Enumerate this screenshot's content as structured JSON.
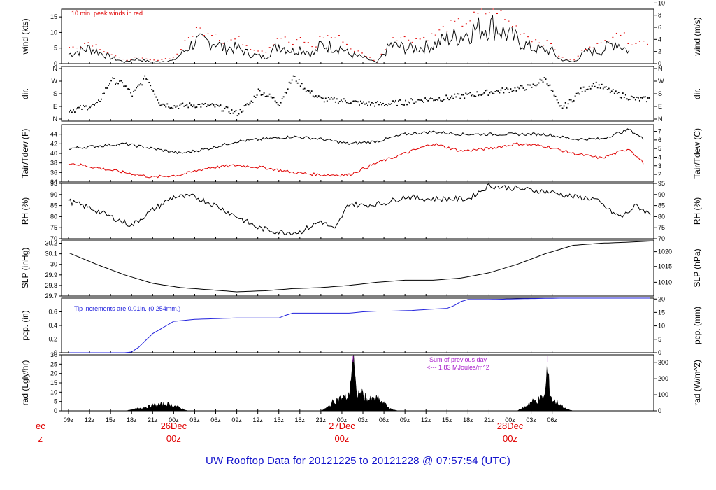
{
  "footer_title": "UW Rooftop Data for 20121225  to  20121228 @ 07:57:54  (UTC)",
  "colors": {
    "black": "#000000",
    "red": "#e00000",
    "blue": "#2222dd",
    "purple": "#aa22cc",
    "title_blue": "#1111cc"
  },
  "chart_data": [
    {
      "type": "line",
      "id": "wind",
      "ylabel": "wind (kts)",
      "ylabel_right": "wind (m/s)",
      "ylim": [
        0,
        17.5
      ],
      "yticks": [
        0,
        5,
        10,
        15
      ],
      "yticks_right": [
        {
          "v": 0,
          "label": "0"
        },
        {
          "v": 3.89,
          "label": "2"
        },
        {
          "v": 7.78,
          "label": "4"
        },
        {
          "v": 11.66,
          "label": "6"
        },
        {
          "v": 15.55,
          "label": "8"
        },
        {
          "v": 19.44,
          "label": "10"
        }
      ],
      "annotation": "10 min. peak winds in red",
      "x": [
        0,
        3,
        6,
        8,
        9.5,
        12,
        15,
        18,
        21,
        22,
        24,
        26,
        28,
        30,
        32,
        33,
        35,
        36,
        39,
        40,
        42,
        44,
        46,
        48,
        50,
        52,
        54,
        56,
        58,
        60,
        61,
        62,
        63,
        66,
        69,
        70,
        72,
        74,
        76,
        78,
        80
      ],
      "series": [
        {
          "name": "",
          "values": [
            3,
            5,
            2,
            0.5,
            1.5,
            0.5,
            1,
            7,
            7,
            5,
            5,
            3,
            2,
            6,
            4,
            5,
            3,
            6,
            5,
            3,
            2,
            0.3,
            6,
            5,
            5,
            6,
            8,
            9,
            11,
            12,
            12,
            10,
            9,
            5,
            4,
            1.5,
            0.5,
            4,
            4,
            7,
            4
          ]
        },
        {
          "name": "10 min. peak winds in red",
          "values": [
            5,
            7,
            3,
            1,
            2,
            1,
            2,
            11,
            10,
            7,
            8,
            5,
            4,
            9,
            6,
            8,
            5,
            9,
            8,
            5,
            3,
            0.5,
            9,
            8,
            8,
            9,
            12,
            13,
            15,
            17,
            18,
            14,
            13,
            8,
            6,
            2,
            1,
            6,
            6,
            11,
            7
          ]
        }
      ]
    },
    {
      "type": "scatter",
      "id": "dir",
      "ylabel": "dir.",
      "ylabel_right": "dir.",
      "ylim": [
        -15,
        375
      ],
      "yticks": [
        {
          "v": 0,
          "label": "N"
        },
        {
          "v": 90,
          "label": "E"
        },
        {
          "v": 180,
          "label": "S"
        },
        {
          "v": 270,
          "label": "W"
        },
        {
          "v": 360,
          "label": "N"
        }
      ],
      "x": [
        0,
        2,
        4,
        6,
        8,
        9,
        11,
        13,
        15,
        18,
        21,
        24,
        26,
        27,
        29,
        30,
        32,
        34,
        36,
        39,
        42,
        45,
        48,
        51,
        54,
        57,
        60,
        63,
        66,
        68,
        70,
        71,
        73,
        75,
        78,
        81
      ],
      "values": [
        60,
        80,
        100,
        280,
        240,
        170,
        300,
        110,
        90,
        100,
        90,
        40,
        120,
        200,
        150,
        110,
        300,
        200,
        140,
        130,
        110,
        105,
        120,
        140,
        150,
        170,
        190,
        210,
        230,
        290,
        80,
        100,
        200,
        250,
        180,
        140
      ]
    },
    {
      "type": "line",
      "id": "temp",
      "ylabel": "Tair/Tdew (F)",
      "ylabel_right": "Tair/Tdew (C)",
      "ylim": [
        34,
        46
      ],
      "yticks": [
        34,
        36,
        38,
        40,
        42,
        44
      ],
      "yticks_right": [
        {
          "v": 35.6,
          "label": "2"
        },
        {
          "v": 37.4,
          "label": "3"
        },
        {
          "v": 39.2,
          "label": "4"
        },
        {
          "v": 41.0,
          "label": "5"
        },
        {
          "v": 42.8,
          "label": "6"
        },
        {
          "v": 44.6,
          "label": "7"
        }
      ],
      "x": [
        0,
        4,
        8,
        12,
        16,
        20,
        24,
        28,
        32,
        36,
        40,
        44,
        48,
        52,
        56,
        60,
        64,
        68,
        72,
        76,
        80,
        82
      ],
      "series": [
        {
          "name": "Tair",
          "values": [
            41,
            41.5,
            42,
            41,
            40,
            41,
            42.5,
            43,
            43.5,
            43,
            42,
            42.5,
            44,
            44.5,
            44,
            44,
            44,
            44,
            43,
            43,
            45,
            43
          ]
        },
        {
          "name": "Tdew",
          "values": [
            38,
            37,
            36,
            35,
            35.5,
            37,
            37.5,
            37,
            36,
            35.5,
            35.5,
            38,
            40,
            42,
            40.5,
            41,
            42,
            41.5,
            40,
            39,
            41,
            38
          ]
        }
      ]
    },
    {
      "type": "line",
      "id": "rh",
      "ylabel": "RH (%)",
      "ylabel_right": "RH (%)",
      "ylim": [
        70,
        95
      ],
      "yticks": [
        70,
        75,
        80,
        85,
        90,
        95
      ],
      "x": [
        0,
        3,
        6,
        9,
        12,
        15,
        18,
        21,
        24,
        27,
        30,
        33,
        36,
        38,
        40,
        42,
        45,
        48,
        51,
        54,
        57,
        60,
        63,
        66,
        69,
        72,
        75,
        78,
        79,
        81,
        83
      ],
      "values": [
        87,
        84,
        80,
        76,
        83,
        89,
        89,
        85,
        80,
        75,
        73,
        73,
        78,
        74,
        86,
        85,
        86,
        89,
        88,
        88,
        88,
        94,
        93,
        92,
        91,
        89,
        88,
        81,
        80,
        85,
        81
      ]
    },
    {
      "type": "line",
      "id": "slp",
      "ylabel": "SLP (inHg)",
      "ylabel_right": "SLP (hPa)",
      "ylim": [
        29.7,
        30.23
      ],
      "yticks": [
        29.7,
        29.8,
        29.9,
        30.0,
        30.1,
        30.2
      ],
      "yticks_right": [
        {
          "v": 29.83,
          "label": "1010"
        },
        {
          "v": 29.98,
          "label": "1015"
        },
        {
          "v": 30.12,
          "label": "1020"
        }
      ],
      "x": [
        0,
        4,
        8,
        12,
        16,
        20,
        24,
        28,
        32,
        36,
        40,
        44,
        48,
        52,
        56,
        60,
        64,
        68,
        72,
        76,
        80,
        83
      ],
      "values": [
        30.11,
        30.0,
        29.9,
        29.82,
        29.78,
        29.76,
        29.74,
        29.75,
        29.77,
        29.78,
        29.8,
        29.83,
        29.85,
        29.85,
        29.87,
        29.92,
        30.0,
        30.1,
        30.18,
        30.2,
        30.21,
        30.22
      ]
    },
    {
      "type": "line",
      "id": "pcp",
      "ylabel": "pcp. (in)",
      "ylabel_right": "pcp. (mm)",
      "ylim": [
        0,
        0.8
      ],
      "yticks": [
        0,
        0.2,
        0.4,
        0.6
      ],
      "yticks_right": [
        {
          "v": 0,
          "label": "0"
        },
        {
          "v": 0.197,
          "label": "5"
        },
        {
          "v": 0.394,
          "label": "10"
        },
        {
          "v": 0.591,
          "label": "15"
        },
        {
          "v": 0.787,
          "label": "20"
        }
      ],
      "annotation": "Tip increments are 0.01in. (0.254mm.)",
      "x": [
        0,
        8,
        9,
        10,
        12,
        15,
        18,
        21,
        24,
        30,
        31,
        32,
        33,
        40,
        42,
        44,
        46,
        49,
        52,
        54,
        55,
        56,
        57,
        60,
        64,
        70,
        83
      ],
      "values": [
        0,
        0,
        0.01,
        0.08,
        0.28,
        0.46,
        0.49,
        0.5,
        0.51,
        0.51,
        0.55,
        0.58,
        0.58,
        0.58,
        0.6,
        0.61,
        0.61,
        0.62,
        0.64,
        0.65,
        0.69,
        0.75,
        0.78,
        0.78,
        0.79,
        0.8,
        0.8
      ]
    },
    {
      "type": "area",
      "id": "rad",
      "ylabel": "rad (Lgly/hr)",
      "ylabel_right": "rad (W/m^2)",
      "ylim": [
        0,
        30
      ],
      "yticks": [
        0,
        5,
        10,
        15,
        20,
        25,
        30
      ],
      "yticks_right": [
        {
          "v": 0,
          "label": "0"
        },
        {
          "v": 8.6,
          "label": "100"
        },
        {
          "v": 17.2,
          "label": "200"
        },
        {
          "v": 25.8,
          "label": "300"
        }
      ],
      "annotation": "Sum of previous day",
      "annotation2": "<--- 1.83 MJoules/m^2",
      "x": [
        8,
        9,
        10,
        11,
        12,
        13,
        14,
        15,
        16,
        17,
        36,
        37,
        38,
        39,
        40,
        40.3,
        40.6,
        41,
        42,
        43,
        44,
        45,
        46,
        47,
        64,
        65,
        66,
        67,
        68,
        68.3,
        68.6,
        69,
        70,
        71,
        72
      ],
      "values": [
        0,
        0.5,
        1.5,
        2,
        3,
        3.5,
        4,
        3,
        1.5,
        0,
        0,
        2,
        6,
        7,
        8,
        20,
        30,
        10,
        9,
        6,
        7,
        4,
        1,
        0,
        0,
        2,
        5,
        6,
        8,
        25,
        12,
        6,
        4,
        1,
        0
      ]
    }
  ],
  "time_axis": {
    "ticks": [
      {
        "t": 0,
        "label": "09z"
      },
      {
        "t": 3,
        "label": "12z"
      },
      {
        "t": 6,
        "label": "15z"
      },
      {
        "t": 9,
        "label": "18z"
      },
      {
        "t": 12,
        "label": "21z"
      },
      {
        "t": 15,
        "label": "00z"
      },
      {
        "t": 18,
        "label": "03z"
      },
      {
        "t": 21,
        "label": "06z"
      },
      {
        "t": 24,
        "label": "09z"
      },
      {
        "t": 27,
        "label": "12z"
      },
      {
        "t": 30,
        "label": "15z"
      },
      {
        "t": 33,
        "label": "18z"
      },
      {
        "t": 36,
        "label": "21z"
      },
      {
        "t": 39,
        "label": "00z"
      },
      {
        "t": 42,
        "label": "03z"
      },
      {
        "t": 45,
        "label": "06z"
      },
      {
        "t": 48,
        "label": "09z"
      },
      {
        "t": 51,
        "label": "12z"
      },
      {
        "t": 54,
        "label": "15z"
      },
      {
        "t": 57,
        "label": "18z"
      },
      {
        "t": 60,
        "label": "21z"
      },
      {
        "t": 63,
        "label": "00z"
      },
      {
        "t": 66,
        "label": "03z"
      },
      {
        "t": 69,
        "label": "06z"
      }
    ],
    "days": [
      {
        "t": -4,
        "label": "ec",
        "sub": "z"
      },
      {
        "t": 15,
        "label": "26Dec",
        "sub": "00z"
      },
      {
        "t": 39,
        "label": "27Dec",
        "sub": "00z"
      },
      {
        "t": 63,
        "label": "28Dec",
        "sub": "00z"
      }
    ]
  }
}
